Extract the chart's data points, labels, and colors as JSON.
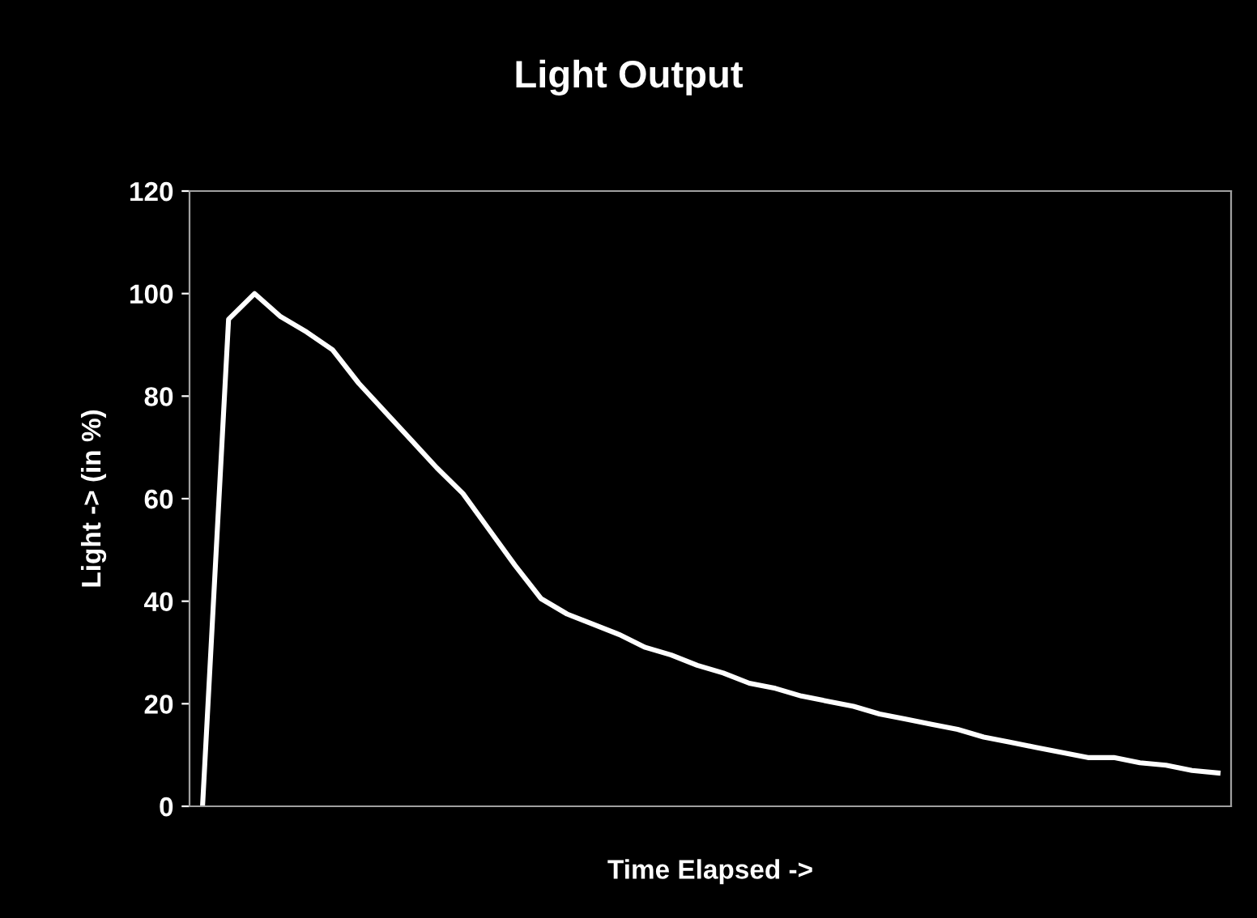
{
  "chart_data": {
    "type": "line",
    "title": "Light Output",
    "xlabel": "Time Elapsed ->",
    "ylabel": "Light -> (in %)",
    "categories": [
      null,
      null,
      null,
      null,
      null,
      null,
      null,
      null,
      null,
      null,
      null,
      null,
      null,
      null,
      null,
      null,
      null,
      null,
      null,
      null,
      null,
      null,
      null,
      null,
      null,
      null,
      null,
      null,
      null,
      null,
      null,
      null,
      null,
      null,
      null,
      null,
      null,
      null,
      null,
      null
    ],
    "series": [
      {
        "color": "#ffffff",
        "values": [
          0,
          95,
          100,
          95.5,
          92.5,
          89,
          82.5,
          77,
          71.5,
          66,
          61,
          54,
          47,
          40.5,
          37.5,
          35.5,
          33.5,
          31,
          29.5,
          27.5,
          26,
          24,
          23,
          21.5,
          20.5,
          19.5,
          18,
          17,
          16,
          15,
          13.5,
          12.5,
          11.5,
          10.5,
          9.5,
          9.5,
          8.5,
          8,
          7,
          6.5
        ]
      }
    ],
    "ylim": [
      0,
      120
    ],
    "yticks": [
      0,
      20,
      40,
      60,
      80,
      100,
      120
    ],
    "tick_labels": "y",
    "grid": false,
    "legend": false,
    "marker": "none",
    "line_style": "solid"
  }
}
